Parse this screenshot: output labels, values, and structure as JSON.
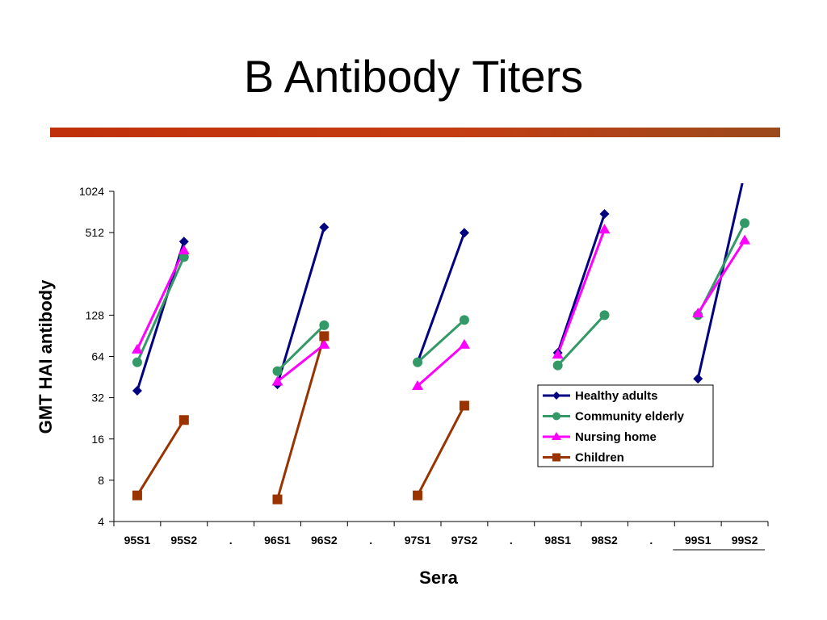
{
  "slide": {
    "title": "B Antibody Titers"
  },
  "chart_data": {
    "type": "line",
    "title": "",
    "xlabel": "Sera",
    "ylabel": "GMT HAI antibody",
    "y_scale": "log2",
    "ylim": [
      4,
      1024
    ],
    "yticks": [
      4,
      8,
      16,
      32,
      64,
      128,
      512,
      1024
    ],
    "categories": [
      "95S1",
      "95S2",
      ".",
      "96S1",
      "96S2",
      ".",
      "97S1",
      "97S2",
      ".",
      "98S1",
      "98S2",
      ".",
      "99S1",
      "99S2"
    ],
    "legend_position": "lower-right",
    "series": [
      {
        "name": "Healthy adults",
        "color": "#000080",
        "marker": "diamond",
        "values": [
          36,
          440,
          null,
          40,
          560,
          null,
          58,
          510,
          null,
          68,
          700,
          null,
          44,
          1400
        ]
      },
      {
        "name": "Community elderly",
        "color": "#339966",
        "marker": "circle",
        "values": [
          58,
          340,
          null,
          50,
          108,
          null,
          58,
          118,
          null,
          55,
          128,
          null,
          128,
          600
        ]
      },
      {
        "name": "Nursing home",
        "color": "#ff00ff",
        "marker": "triangle",
        "values": [
          72,
          380,
          null,
          42,
          78,
          null,
          39,
          78,
          null,
          66,
          540,
          null,
          132,
          450
        ]
      },
      {
        "name": "Children",
        "color": "#993300",
        "marker": "square",
        "values": [
          6.2,
          22,
          null,
          5.8,
          90,
          null,
          6.2,
          28,
          null,
          null,
          null,
          null,
          null,
          null
        ]
      }
    ]
  }
}
